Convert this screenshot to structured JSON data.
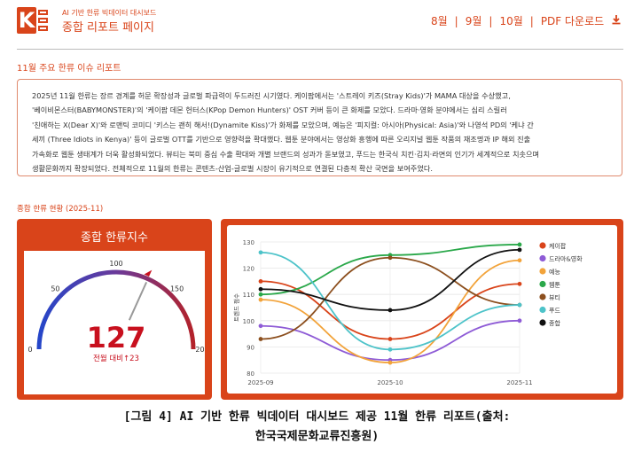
{
  "header": {
    "subtitle": "AI 기반 한류 빅데이터 대시보드",
    "title": "종합 리포트 페이지",
    "logo_text": "K",
    "nav": [
      "8월",
      "9월",
      "10월"
    ],
    "pdf_label": "PDF 다운로드"
  },
  "report": {
    "section_title": "11월 주요 한류 이슈 리포트",
    "lines": [
      "2025년 11월 한류는 장르 경계를 허문 확장성과 글로벌 파급력이 두드러진 시기였다. 케이팝에서는 '스트레이 키즈(Stray Kids)'가 MAMA 대상을 수상했고,",
      "'베이비몬스터(BABYMONSTER)'의 '케이팝 데몬 헌터스(KPop Demon Hunters)' OST 커버 등이 큰 화제를 모았다. 드라마·영화 분야에서는 심리 스릴러",
      "'친애하는 X(Dear X)'와 로맨틱 코미디 '키스는 괜히 해서!(Dynamite Kiss)'가 화제를 모았으며, 예능은 '피지컬: 아시아(Physical: Asia)'와 나영석 PD의 '케냐 간",
      "세끼 (Three Idiots in Kenya)' 등이 글로벌 OTT를 기반으로 영향력을 확대했다. 웹툰 분야에서는 영상화 흥행에 따른 오리지널 웹툰 작품의 재조명과 IP 해외 진출",
      "가속화로 웹툰 생태계가 더욱 활성화되었다. 뷰티는 북미 중심 수출 확대와 개별 브랜드의 성과가 돋보였고, 푸드는 한국식 치킨·김치·라면의 인기가 세계적으로 치솟으며",
      "생활문화까지 확장되었다. 전체적으로 11월의 한류는 콘텐츠-산업-글로벌 시장이 유기적으로 연결된 다층적 확산 국면을 보여주었다."
    ]
  },
  "dashboard": {
    "section_title": "종합 한류 현황 (2025-11)",
    "gauge": {
      "title": "종합 한류지수",
      "value": "127",
      "change_label": "전월 대비↑23",
      "min": 0,
      "max": 200,
      "ticks": [
        "0",
        "50",
        "100",
        "150",
        "200"
      ]
    }
  },
  "chart_data": {
    "type": "line",
    "x": [
      "2025-09",
      "2025-10",
      "2025-11"
    ],
    "ylabel": "트렌드 점수",
    "ylim": [
      80,
      130
    ],
    "yticks": [
      "80",
      "90",
      "100",
      "110",
      "120",
      "130"
    ],
    "grid": true,
    "legend_position": "right",
    "series": [
      {
        "name": "케이팝",
        "color": "#d9441a",
        "values": [
          115,
          93,
          114
        ]
      },
      {
        "name": "드라마&영화",
        "color": "#8e5bd6",
        "values": [
          98,
          85,
          100
        ]
      },
      {
        "name": "예능",
        "color": "#f2a33a",
        "values": [
          108,
          84,
          123
        ]
      },
      {
        "name": "웹툰",
        "color": "#2aa84a",
        "values": [
          110,
          125,
          129
        ]
      },
      {
        "name": "뷰티",
        "color": "#8c4f1e",
        "values": [
          93,
          124,
          106
        ]
      },
      {
        "name": "푸드",
        "color": "#4dc3c9",
        "values": [
          126,
          89,
          106
        ]
      },
      {
        "name": "종합",
        "color": "#111111",
        "values": [
          112,
          104,
          127
        ]
      }
    ]
  },
  "caption": {
    "line1": "[그림 4] AI 기반 한류 빅데이터 대시보드 제공 11월 한류 리포트(출처:",
    "line2": "한국국제문화교류진흥원)"
  }
}
